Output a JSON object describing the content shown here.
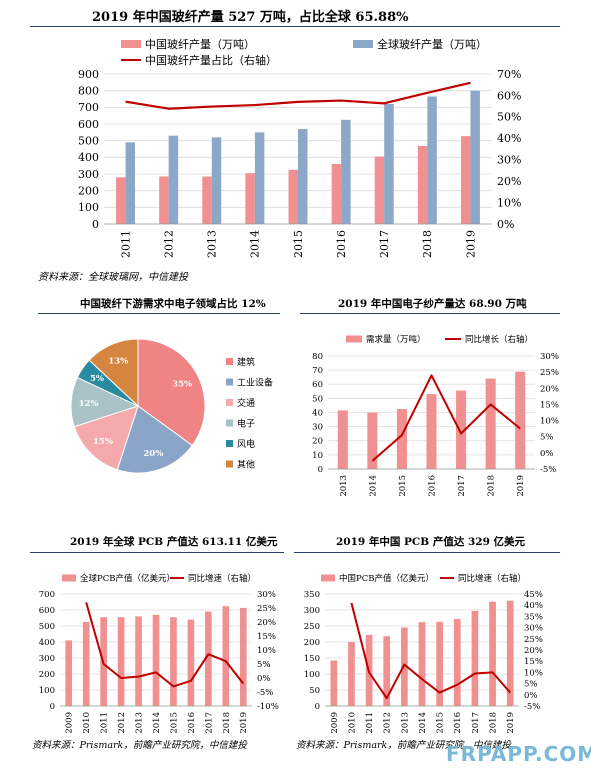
{
  "charts": {
    "top": {
      "title": "2019 年中国玻纤产量 527 万吨，占比全球 65.88%",
      "source": "资料来源：全球玻璃网，中信建投"
    },
    "pie_title": "中国玻纤下游需求中电子领域占比 12%",
    "yarn_title": "2019 年中国电子纱产量达 68.90 万吨",
    "pcb_global_title": "2019 年全球 PCB 产值达 613.11 亿美元",
    "pcb_china_title": "2019 年中国 PCB 产值达 329 亿美元",
    "bottom_source_left": "资料来源：Prismark，前瞻产业研究院，中信建投",
    "bottom_source_right": "资料来源：Prismark，前瞻产业研究院，中信建投"
  },
  "watermark": "FRPAPP.COM",
  "colors": {
    "bar_pink": "#f09090",
    "bar_blue": "#8ba8c8",
    "line_red": "#c00000",
    "rule": "#2a3f6b"
  },
  "chart_data": [
    {
      "id": "glassfiber",
      "type": "bar",
      "categories": [
        "2011",
        "2012",
        "2013",
        "2014",
        "2015",
        "2016",
        "2017",
        "2018",
        "2019"
      ],
      "series": [
        {
          "name": "中国玻纤产量（万吨）",
          "values": [
            280,
            285,
            285,
            305,
            325,
            360,
            405,
            468,
            527
          ],
          "color": "#f09090"
        },
        {
          "name": "全球玻纤产量（万吨）",
          "values": [
            490,
            530,
            520,
            550,
            570,
            625,
            720,
            765,
            800
          ],
          "color": "#8ba8c8"
        }
      ],
      "line": {
        "name": "中国玻纤产量占比（右轴）",
        "values": [
          57.1,
          53.8,
          54.8,
          55.5,
          57.0,
          57.6,
          56.3,
          61.2,
          65.9
        ],
        "color": "#c00000"
      },
      "yticks": [
        "0",
        "100",
        "200",
        "300",
        "400",
        "500",
        "600",
        "700",
        "800",
        "900"
      ],
      "y2ticks": [
        "0%",
        "10%",
        "20%",
        "30%",
        "40%",
        "50%",
        "60%",
        "70%"
      ],
      "ylim": [
        0,
        900
      ],
      "y2lim": [
        0,
        70
      ]
    },
    {
      "id": "pie",
      "type": "pie",
      "slices": [
        {
          "name": "建筑",
          "value": 35,
          "label": "35%",
          "color": "#f08383"
        },
        {
          "name": "工业设备",
          "value": 20,
          "label": "20%",
          "color": "#8aa5c7"
        },
        {
          "name": "交通",
          "value": 15,
          "label": "15%",
          "color": "#f6a9ad"
        },
        {
          "name": "电子",
          "value": 12,
          "label": "12%",
          "color": "#a9c2c6"
        },
        {
          "name": "风电",
          "value": 5,
          "label": "5%",
          "color": "#2a8aa0"
        },
        {
          "name": "其他",
          "value": 13,
          "label": "13%",
          "color": "#d48640"
        }
      ]
    },
    {
      "id": "yarn",
      "type": "bar",
      "categories": [
        "2013",
        "2014",
        "2015",
        "2016",
        "2017",
        "2018",
        "2019"
      ],
      "series": [
        {
          "name": "需求量（万吨）",
          "values": [
            41.5,
            40,
            42.5,
            53,
            55.5,
            64,
            68.9
          ],
          "color": "#f09090"
        }
      ],
      "line": {
        "name": "同比增长（右轴）",
        "values": [
          null,
          -2.5,
          5.5,
          24,
          6,
          15,
          7.5
        ],
        "color": "#c00000"
      },
      "yticks": [
        "0",
        "10",
        "20",
        "30",
        "40",
        "50",
        "60",
        "70",
        "80"
      ],
      "y2ticks": [
        "-5%",
        "0%",
        "5%",
        "10%",
        "15%",
        "20%",
        "25%",
        "30%"
      ],
      "ylim": [
        0,
        80
      ],
      "y2lim": [
        -5,
        30
      ]
    },
    {
      "id": "pcb_global",
      "type": "bar",
      "categories": [
        "2009",
        "2010",
        "2011",
        "2012",
        "2013",
        "2014",
        "2015",
        "2016",
        "2017",
        "2018",
        "2019"
      ],
      "series": [
        {
          "name": "全球PCB产值（亿美元）",
          "values": [
            410,
            525,
            555,
            555,
            560,
            570,
            555,
            540,
            590,
            624,
            613
          ],
          "color": "#f09090"
        }
      ],
      "line": {
        "name": "同比增速（右轴）",
        "values": [
          null,
          27,
          5,
          0,
          0.5,
          2,
          -3,
          -1,
          8.5,
          6,
          -2
        ],
        "color": "#c00000"
      },
      "yticks": [
        "0",
        "100",
        "200",
        "300",
        "400",
        "500",
        "600",
        "700"
      ],
      "y2ticks": [
        "-10%",
        "-5%",
        "0%",
        "5%",
        "10%",
        "15%",
        "20%",
        "25%",
        "30%"
      ],
      "ylim": [
        0,
        700
      ],
      "y2lim": [
        -10,
        30
      ]
    },
    {
      "id": "pcb_china",
      "type": "bar",
      "categories": [
        "2009",
        "2010",
        "2011",
        "2012",
        "2013",
        "2014",
        "2015",
        "2016",
        "2017",
        "2018",
        "2019"
      ],
      "series": [
        {
          "name": "中国PCB产值（亿美元）",
          "values": [
            142,
            200,
            222,
            218,
            245,
            262,
            263,
            272,
            297,
            326,
            329
          ],
          "color": "#f09090"
        }
      ],
      "line": {
        "name": "同比增速（右轴）",
        "values": [
          null,
          41,
          10,
          -1.5,
          13.5,
          7,
          1,
          4.5,
          9.5,
          10,
          1
        ],
        "color": "#c00000"
      },
      "yticks": [
        "0",
        "50",
        "100",
        "150",
        "200",
        "250",
        "300",
        "350"
      ],
      "y2ticks": [
        "-5%",
        "0%",
        "5%",
        "10%",
        "15%",
        "20%",
        "25%",
        "30%",
        "35%",
        "40%",
        "45%"
      ],
      "ylim": [
        0,
        350
      ],
      "y2lim": [
        -5,
        45
      ]
    }
  ]
}
